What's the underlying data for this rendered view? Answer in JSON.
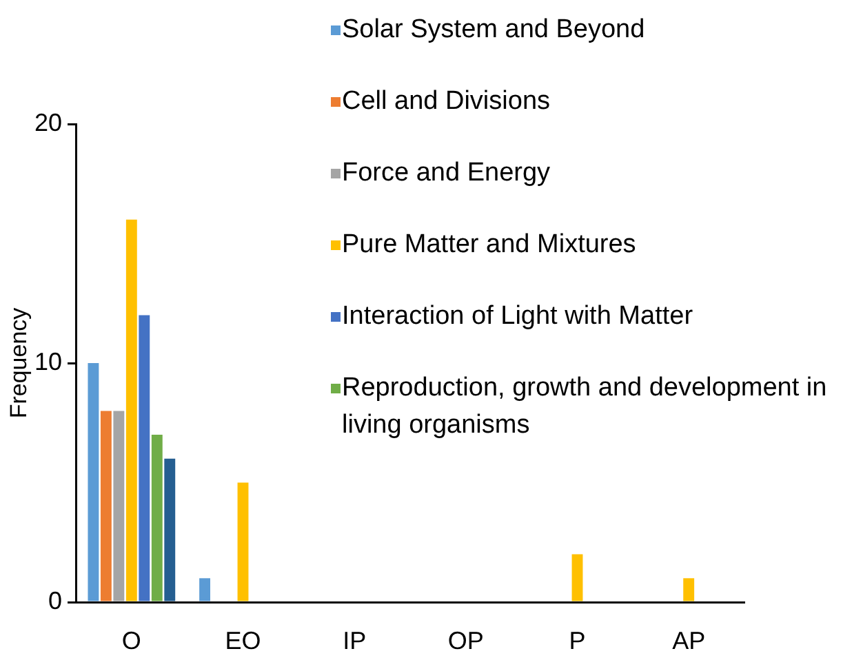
{
  "chart_data": {
    "type": "bar",
    "ylabel": "Frequency",
    "categories": [
      "O",
      "EO",
      "IP",
      "OP",
      "P",
      "AP"
    ],
    "series": [
      {
        "name": "Solar System and Beyond",
        "color": "#5b9bd5",
        "values": [
          10,
          1,
          0,
          0,
          0,
          0
        ]
      },
      {
        "name": "Cell and Divisions",
        "color": "#ed7d31",
        "values": [
          8,
          0,
          0,
          0,
          0,
          0
        ]
      },
      {
        "name": "Force and Energy",
        "color": "#a5a5a5",
        "values": [
          8,
          0,
          0,
          0,
          0,
          0
        ]
      },
      {
        "name": "Pure Matter and Mixtures",
        "color": "#ffc000",
        "values": [
          16,
          5,
          0,
          0,
          2,
          1
        ]
      },
      {
        "name": "Interaction of Light with Matter",
        "color": "#4472c4",
        "values": [
          12,
          0,
          0,
          0,
          0,
          0
        ]
      },
      {
        "name": "Reproduction, growth and development in living organisms",
        "color": "#70ad47",
        "values": [
          7,
          0,
          0,
          0,
          0,
          0
        ]
      },
      {
        "color": "#255e91",
        "values": [
          6,
          0,
          0,
          0,
          0,
          0
        ]
      }
    ],
    "ylim": [
      0,
      20
    ],
    "yticks": [
      0,
      10,
      20
    ],
    "legend": "top right"
  }
}
